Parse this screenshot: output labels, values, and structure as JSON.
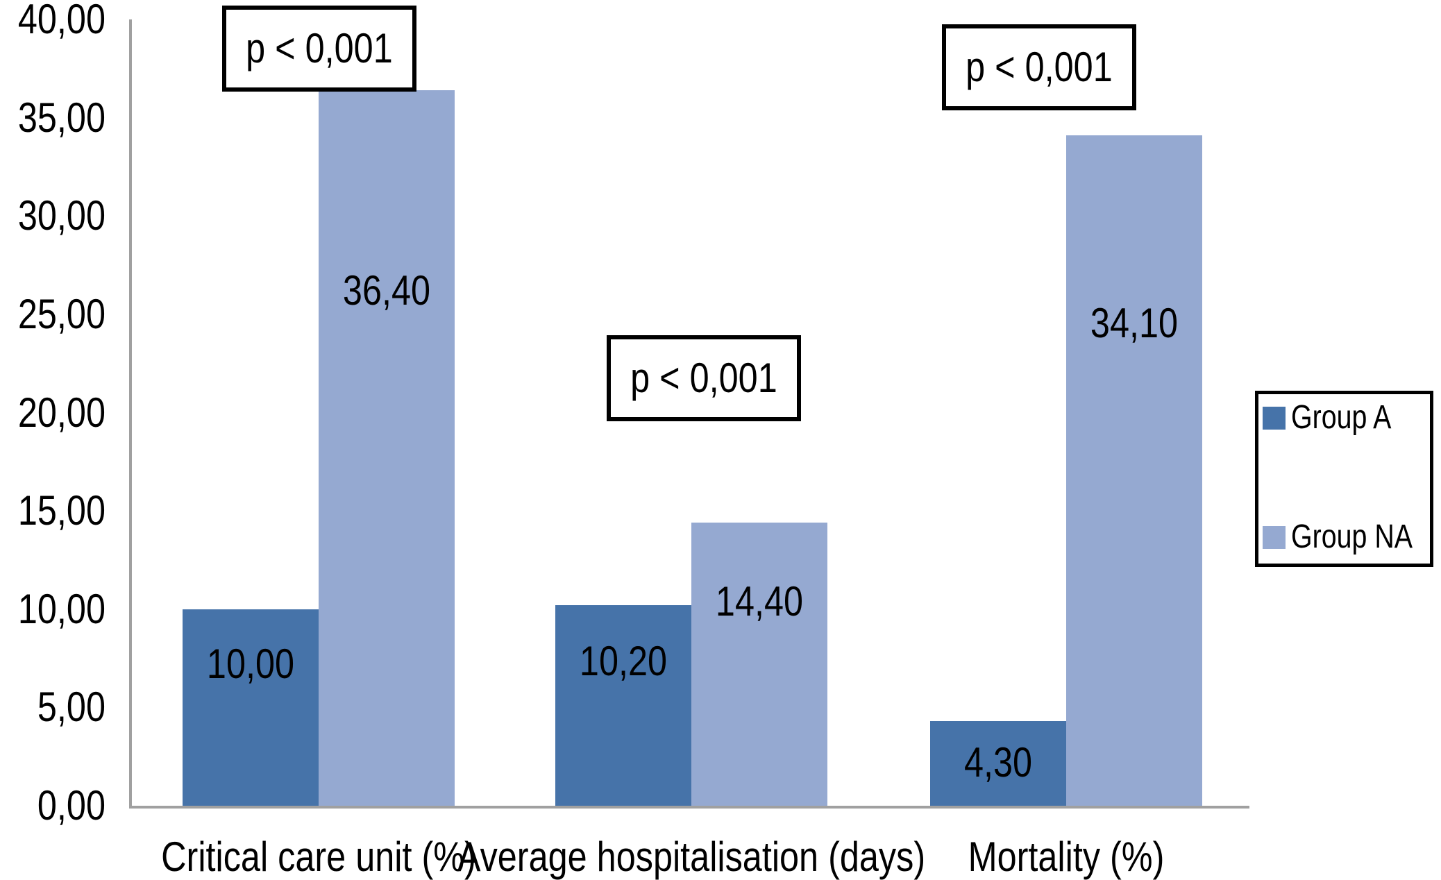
{
  "chart_data": {
    "type": "bar",
    "title": "",
    "categories": [
      "Critical care unit (%)",
      "Average hospitalisation (days)",
      "Mortality (%)"
    ],
    "series": [
      {
        "name": "Group A",
        "color": "#4673A9",
        "values": [
          10.0,
          10.2,
          4.3
        ],
        "labels": [
          "10,00",
          "10,20",
          "4,30"
        ]
      },
      {
        "name": "Group NA",
        "color": "#95A9D1",
        "values": [
          36.4,
          14.4,
          34.1
        ],
        "labels": [
          "36,40",
          "14,40",
          "34,10"
        ]
      }
    ],
    "annotations": [
      {
        "text": "p < 0,001",
        "category_index": 0
      },
      {
        "text": "p < 0,001",
        "category_index": 1
      },
      {
        "text": "p < 0,001",
        "category_index": 2
      }
    ],
    "y_axis": {
      "min": 0,
      "max": 40,
      "step": 5,
      "tick_labels": [
        "0,00",
        "5,00",
        "10,00",
        "15,00",
        "20,00",
        "25,00",
        "30,00",
        "35,00",
        "40,00"
      ]
    },
    "xlabel": "",
    "ylabel": "",
    "legend": {
      "position": "right",
      "entries": [
        "Group A",
        "Group NA"
      ]
    },
    "grid": false,
    "decimal_separator": ","
  },
  "colors": {
    "series_group_a": "#4673A9",
    "series_group_na": "#95A9D1",
    "axis_line": "#A0A0A0",
    "text": "#000000",
    "annotation_border": "#000000",
    "background": "#FFFFFF"
  }
}
